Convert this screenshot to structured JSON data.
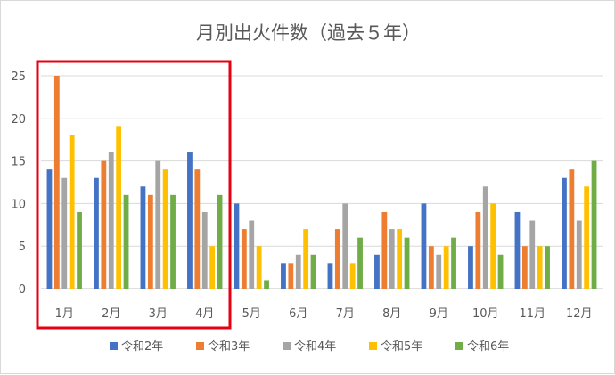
{
  "chart_data": {
    "type": "bar",
    "title": "月別出火件数（過去５年）",
    "xlabel": "",
    "ylabel": "",
    "ylim": [
      0,
      25
    ],
    "yticks": [
      0,
      5,
      10,
      15,
      20,
      25
    ],
    "grid": true,
    "legend_position": "bottom",
    "categories": [
      "1月",
      "2月",
      "3月",
      "4月",
      "5月",
      "6月",
      "7月",
      "8月",
      "9月",
      "10月",
      "11月",
      "12月"
    ],
    "series": [
      {
        "name": "令和2年",
        "color": "#4472c4",
        "values": [
          14,
          13,
          12,
          16,
          10,
          3,
          3,
          4,
          10,
          5,
          9,
          13
        ]
      },
      {
        "name": "令和3年",
        "color": "#ed7d31",
        "values": [
          25,
          15,
          11,
          14,
          7,
          3,
          7,
          9,
          5,
          9,
          5,
          14
        ]
      },
      {
        "name": "令和4年",
        "color": "#a5a5a5",
        "values": [
          13,
          16,
          15,
          9,
          8,
          4,
          10,
          7,
          4,
          12,
          8,
          8
        ]
      },
      {
        "name": "令和5年",
        "color": "#ffc000",
        "values": [
          18,
          19,
          14,
          5,
          5,
          7,
          3,
          7,
          5,
          10,
          5,
          12
        ]
      },
      {
        "name": "令和6年",
        "color": "#70ad47",
        "values": [
          9,
          11,
          11,
          11,
          1,
          4,
          6,
          6,
          6,
          4,
          5,
          15
        ]
      }
    ],
    "highlight": {
      "categories": [
        "1月",
        "2月",
        "3月",
        "4月"
      ],
      "color": "#e60012"
    }
  }
}
